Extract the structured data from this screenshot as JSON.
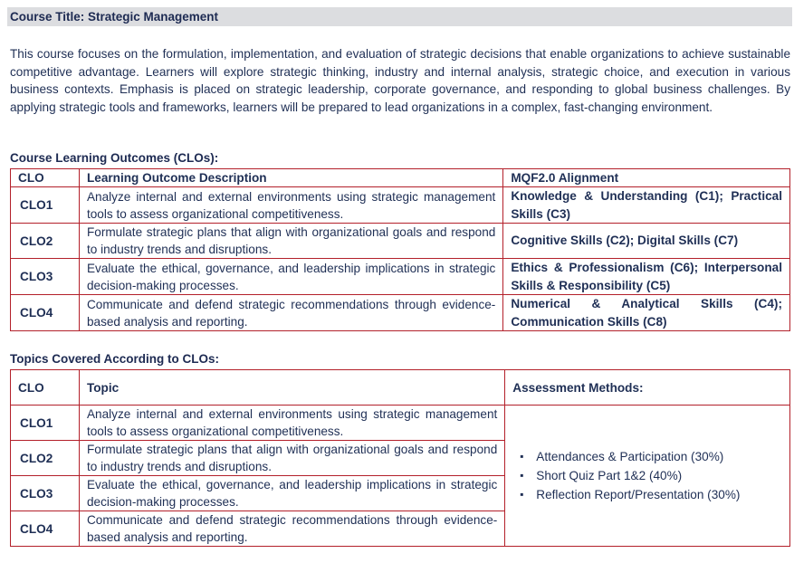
{
  "course_title": "Course Title: Strategic Management",
  "description": "This course focuses on the formulation, implementation, and evaluation of strategic decisions that enable organizations to achieve sustainable competitive advantage. Learners will explore strategic thinking, industry and internal analysis, strategic choice, and execution in various business contexts. Emphasis is placed on strategic leadership, corporate governance, and responding to global business challenges. By applying strategic tools and frameworks, learners will be prepared to lead organizations in a complex, fast-changing environment.",
  "clo_section": {
    "heading": "Course Learning Outcomes (CLOs):",
    "headers": [
      "CLO",
      "Learning Outcome Description",
      "MQF2.0 Alignment"
    ],
    "rows": [
      {
        "clo": "CLO1",
        "description": "Analyze internal and external environments using strategic management tools to assess organizational competitiveness.",
        "alignment": "Knowledge & Understanding (C1); Practical Skills (C3)"
      },
      {
        "clo": "CLO2",
        "description": "Formulate strategic plans that align with organizational goals and respond to industry trends and disruptions.",
        "alignment": "Cognitive Skills (C2); Digital Skills (C7)"
      },
      {
        "clo": "CLO3",
        "description": "Evaluate the ethical, governance, and leadership implications in strategic decision-making processes.",
        "alignment": "Ethics & Professionalism (C6); Interpersonal Skills & Responsibility (C5)"
      },
      {
        "clo": "CLO4",
        "description": "Communicate and defend strategic recommendations through evidence-based analysis and reporting.",
        "alignment": "Numerical & Analytical Skills (C4); Communication Skills (C8)"
      }
    ]
  },
  "topics_section": {
    "heading": "Topics Covered According to CLOs:",
    "headers": [
      "CLO",
      "Topic",
      "Assessment Methods:"
    ],
    "rows": [
      {
        "clo": "CLO1",
        "topic": "Analyze internal and external environments using strategic management tools to assess organizational competitiveness."
      },
      {
        "clo": "CLO2",
        "topic": "Formulate strategic plans that align with organizational goals and respond to industry trends and disruptions."
      },
      {
        "clo": "CLO3",
        "topic": "Evaluate the ethical, governance, and leadership implications in strategic decision-making processes."
      },
      {
        "clo": "CLO4",
        "topic": "Communicate and defend strategic recommendations through evidence-based analysis and reporting."
      }
    ],
    "assessment_methods": [
      "Attendances & Participation (30%)",
      "Short Quiz Part 1&2 (40%)",
      "Reflection Report/Presentation (30%)"
    ]
  },
  "colors": {
    "border": "#b3202a",
    "text": "#1f2f55",
    "title_bar": "#dcdde0"
  },
  "icons": {
    "bullet": "square-bullet-icon"
  }
}
